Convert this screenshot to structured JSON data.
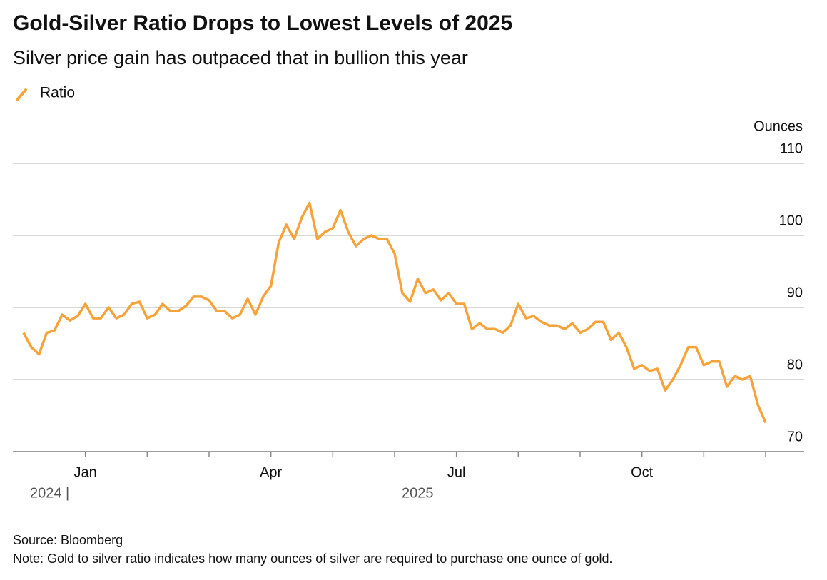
{
  "chart_data": {
    "type": "line",
    "title": "Gold-Silver Ratio Drops to Lowest Levels of 2025",
    "subtitle": "Silver price gain has outpaced that in bullion this year",
    "y_axis_label": "Ounces",
    "x_group_labels": [
      "2024 |",
      "2025"
    ],
    "source": "Source: Bloomberg",
    "note": "Note: Gold to silver ratio indicates how many ounces of silver are required to purchase one ounce of gold.",
    "categories": [
      null,
      null,
      null,
      null,
      null,
      null,
      null,
      null,
      "Jan",
      null,
      null,
      null,
      null,
      null,
      null,
      null,
      null,
      null,
      null,
      null,
      null,
      null,
      null,
      null,
      null,
      null,
      null,
      null,
      null,
      null,
      null,
      null,
      "Apr",
      null,
      null,
      null,
      null,
      null,
      null,
      null,
      null,
      null,
      null,
      null,
      null,
      null,
      null,
      null,
      null,
      null,
      null,
      null,
      null,
      null,
      null,
      null,
      "Jul",
      null,
      null,
      null,
      null,
      null,
      null,
      null,
      null,
      null,
      null,
      null,
      null,
      null,
      null,
      null,
      null,
      null,
      null,
      null,
      null,
      null,
      null,
      null,
      "Oct",
      null,
      null,
      null,
      null,
      null,
      null,
      null,
      null,
      null,
      null,
      null,
      null,
      null,
      null,
      null,
      null
    ],
    "series": [
      {
        "name": "Ratio",
        "color": "#f5a33a",
        "values": [
          86.5,
          84.5,
          83.5,
          86.5,
          86.8,
          89,
          88.2,
          88.8,
          90.5,
          88.5,
          88.5,
          90,
          88.5,
          89,
          90.5,
          90.8,
          88.5,
          89,
          90.5,
          89.5,
          89.5,
          90.2,
          91.5,
          91.5,
          91,
          89.5,
          89.5,
          88.5,
          89,
          91.2,
          89,
          91.5,
          93,
          99,
          101.5,
          99.5,
          102.5,
          104.5,
          99.5,
          100.5,
          101,
          103.5,
          100.5,
          98.5,
          99.5,
          100,
          99.5,
          99.5,
          97.5,
          92,
          90.8,
          94,
          92,
          92.5,
          91,
          92,
          90.5,
          90.5,
          87,
          87.8,
          87,
          87,
          86.5,
          87.5,
          90.5,
          88.5,
          88.8,
          88,
          87.5,
          87.5,
          87,
          87.8,
          86.5,
          87,
          88,
          88,
          85.5,
          86.5,
          84.5,
          81.5,
          82,
          81.2,
          81.5,
          78.5,
          80,
          82,
          84.5,
          84.5,
          82,
          82.5,
          82.5,
          79,
          80.5,
          80,
          80.5,
          76.5,
          74
        ]
      }
    ],
    "xticks": [
      8,
      16,
      24,
      32,
      40,
      48,
      56,
      64,
      72,
      80,
      88,
      96
    ],
    "ylim": [
      70,
      110
    ],
    "yticks": [
      70,
      80,
      90,
      100,
      110
    ],
    "grid": true
  }
}
